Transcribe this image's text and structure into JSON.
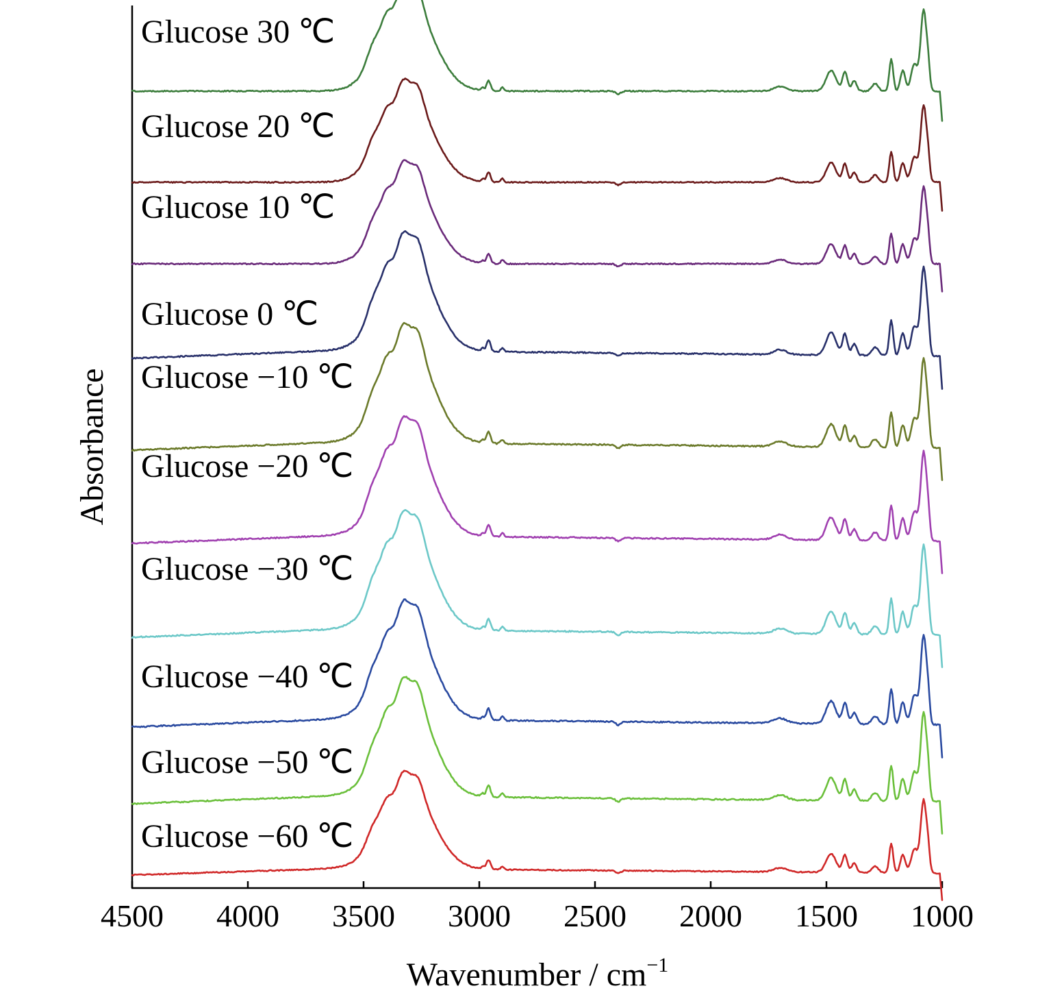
{
  "chart_data": {
    "type": "line",
    "xlabel": "Wavenumber / cm",
    "xlabel_superscript": "−1",
    "ylabel": "Absorbance",
    "xlim": [
      4500,
      1000
    ],
    "x_ticks": [
      "4500",
      "4000",
      "3500",
      "3000",
      "2500",
      "2000",
      "1500",
      "1000"
    ],
    "x_tick_values": [
      4500,
      4000,
      3500,
      3000,
      2500,
      2000,
      1500,
      1000
    ],
    "grid": false,
    "y_offset_stacked": true,
    "series": [
      {
        "name": "Glucose 30 ℃",
        "color": "#3c7d3c",
        "baseline": 10,
        "scale": 1.0
      },
      {
        "name": "Glucose 20 ℃",
        "color": "#6b1a1a",
        "baseline": 9,
        "scale": 0.95
      },
      {
        "name": "Glucose 10 ℃",
        "color": "#6a2a7a",
        "baseline": 8,
        "scale": 0.95
      },
      {
        "name": "Glucose 0 ℃",
        "color": "#28306a",
        "baseline": 7,
        "scale": 1.1
      },
      {
        "name": "Glucose −10 ℃",
        "color": "#6b7a2a",
        "baseline": 6,
        "scale": 1.1
      },
      {
        "name": "Glucose −20 ℃",
        "color": "#a040b0",
        "baseline": 5,
        "scale": 1.1
      },
      {
        "name": "Glucose −30 ℃",
        "color": "#6cc8c8",
        "baseline": 4,
        "scale": 1.1
      },
      {
        "name": "Glucose −40 ℃",
        "color": "#2a4aa0",
        "baseline": 3,
        "scale": 1.1
      },
      {
        "name": "Glucose −50 ℃",
        "color": "#6abf3a",
        "baseline": 2,
        "scale": 1.1
      },
      {
        "name": "Glucose −60 ℃",
        "color": "#d02828",
        "baseline": 1,
        "scale": 0.9
      }
    ],
    "peaks_cm1": [
      3460,
      3400,
      3330,
      3270,
      2960,
      2900,
      1700,
      1480,
      1420,
      1380,
      1280,
      1220,
      1170,
      1080
    ]
  }
}
